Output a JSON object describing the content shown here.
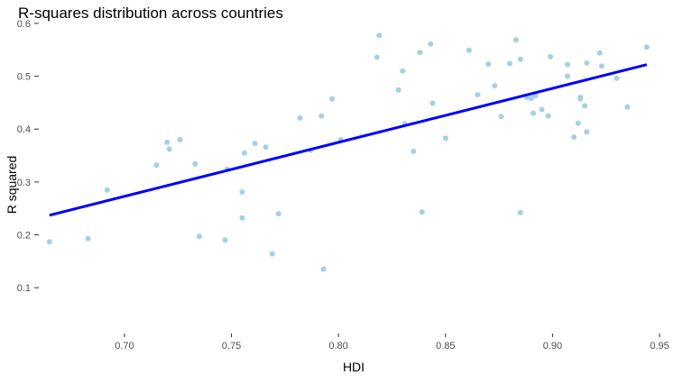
{
  "chart_data": {
    "type": "scatter",
    "title": "R-squares distribution across countries",
    "xlabel": "HDI",
    "ylabel": "R squared",
    "xlim": [
      0.66,
      0.95
    ],
    "ylim": [
      0.015,
      0.605
    ],
    "x_ticks": [
      0.7,
      0.75,
      0.8,
      0.85,
      0.9,
      0.95
    ],
    "x_tick_labels": [
      "0.70",
      "0.75",
      "0.80",
      "0.85",
      "0.90",
      "0.95"
    ],
    "y_ticks": [
      0.1,
      0.2,
      0.3,
      0.4,
      0.5,
      0.6
    ],
    "y_tick_labels": [
      "0.1",
      "0.2",
      "0.3",
      "0.4",
      "0.5",
      "0.6"
    ],
    "grid": false,
    "colors": {
      "points": "#a6cfe2",
      "trend_line": "#0000ff"
    },
    "series": [
      {
        "type": "scatter",
        "x": [
          0.665,
          0.683,
          0.692,
          0.715,
          0.72,
          0.721,
          0.726,
          0.733,
          0.735,
          0.747,
          0.748,
          0.755,
          0.755,
          0.756,
          0.761,
          0.766,
          0.769,
          0.772,
          0.782,
          0.787,
          0.792,
          0.793,
          0.797,
          0.801,
          0.818,
          0.819,
          0.828,
          0.83,
          0.831,
          0.835,
          0.838,
          0.839,
          0.843,
          0.844,
          0.85,
          0.861,
          0.865,
          0.87,
          0.873,
          0.876,
          0.88,
          0.883,
          0.885,
          0.885,
          0.888,
          0.89,
          0.891,
          0.892,
          0.895,
          0.898,
          0.899,
          0.907,
          0.907,
          0.91,
          0.912,
          0.913,
          0.913,
          0.915,
          0.916,
          0.916,
          0.922,
          0.923,
          0.93,
          0.935,
          0.944
        ],
        "y": [
          0.187,
          0.193,
          0.285,
          0.332,
          0.375,
          0.362,
          0.38,
          0.334,
          0.197,
          0.19,
          0.324,
          0.232,
          0.281,
          0.355,
          0.373,
          0.366,
          0.164,
          0.24,
          0.421,
          0.36,
          0.425,
          0.135,
          0.457,
          0.38,
          0.536,
          0.577,
          0.474,
          0.51,
          0.41,
          0.358,
          0.545,
          0.243,
          0.561,
          0.449,
          0.383,
          0.549,
          0.465,
          0.523,
          0.482,
          0.424,
          0.524,
          0.569,
          0.532,
          0.242,
          0.46,
          0.458,
          0.43,
          0.463,
          0.437,
          0.425,
          0.537,
          0.522,
          0.5,
          0.385,
          0.411,
          0.46,
          0.457,
          0.444,
          0.395,
          0.525,
          0.544,
          0.519,
          0.496,
          0.442,
          0.555
        ]
      },
      {
        "type": "line",
        "x": [
          0.665,
          0.944
        ],
        "y": [
          0.237,
          0.522
        ]
      }
    ]
  }
}
